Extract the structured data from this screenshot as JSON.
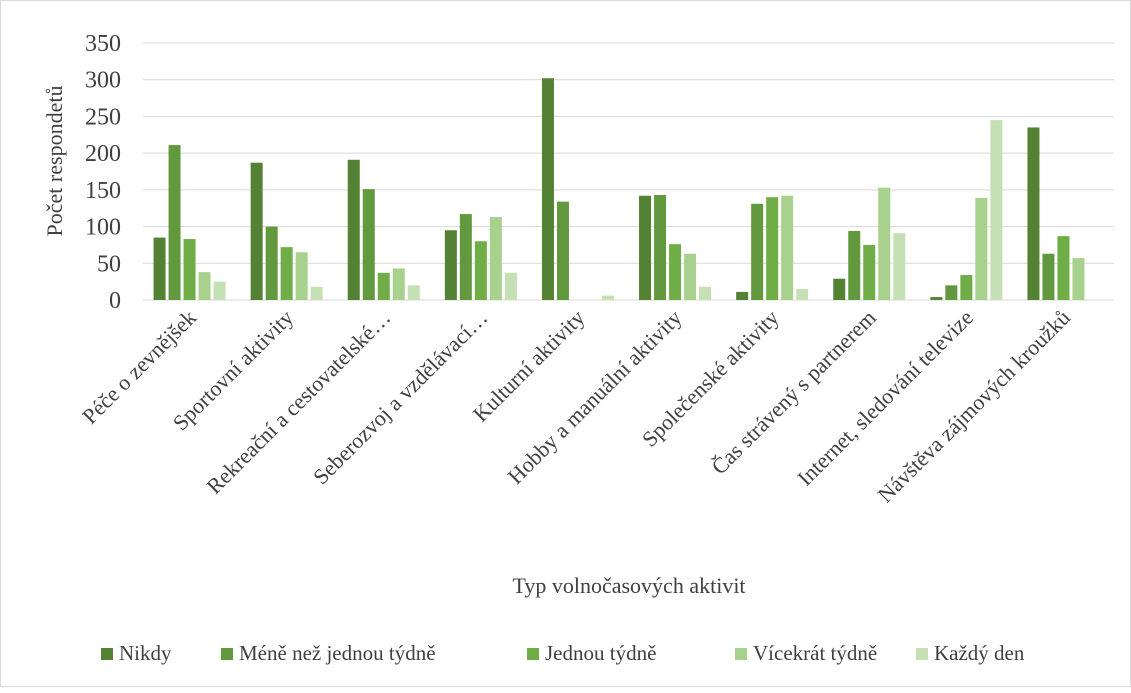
{
  "chart_data": {
    "type": "bar",
    "title": "",
    "xlabel": "Typ volnočasových aktivit",
    "ylabel": "Počet respondetů",
    "ylim": [
      0,
      350
    ],
    "yticks": [
      0,
      50,
      100,
      150,
      200,
      250,
      300,
      350
    ],
    "grid": true,
    "legend_position": "bottom",
    "categories": [
      "Péče o zevnějšek",
      "Sportovní aktivity",
      "Rekreační a cestovatelské…",
      "Seberozvoj a vzdělávací…",
      "Kulturní aktivity",
      "Hobby a manuální aktivity",
      "Společenské aktivity",
      "Čas strávený s partnerem",
      "Internet, sledování televize",
      "Návštěva zájmových kroužků"
    ],
    "series": [
      {
        "name": "Nikdy",
        "color": "#548235",
        "values": [
          85,
          187,
          191,
          95,
          302,
          142,
          11,
          29,
          4,
          235
        ]
      },
      {
        "name": "Méně než jednou týdně",
        "color": "#62993e",
        "values": [
          211,
          100,
          151,
          117,
          134,
          143,
          131,
          94,
          20,
          63
        ]
      },
      {
        "name": "Jednou týdně",
        "color": "#70ad47",
        "values": [
          83,
          72,
          37,
          80,
          0,
          76,
          140,
          75,
          34,
          87
        ]
      },
      {
        "name": "Vícekrát týdně",
        "color": "#a9d18e",
        "values": [
          38,
          65,
          43,
          113,
          0,
          63,
          142,
          153,
          139,
          57
        ]
      },
      {
        "name": "Každý den",
        "color": "#c5e0b4",
        "values": [
          25,
          18,
          20,
          37,
          6,
          18,
          15,
          91,
          245,
          0
        ]
      }
    ]
  }
}
